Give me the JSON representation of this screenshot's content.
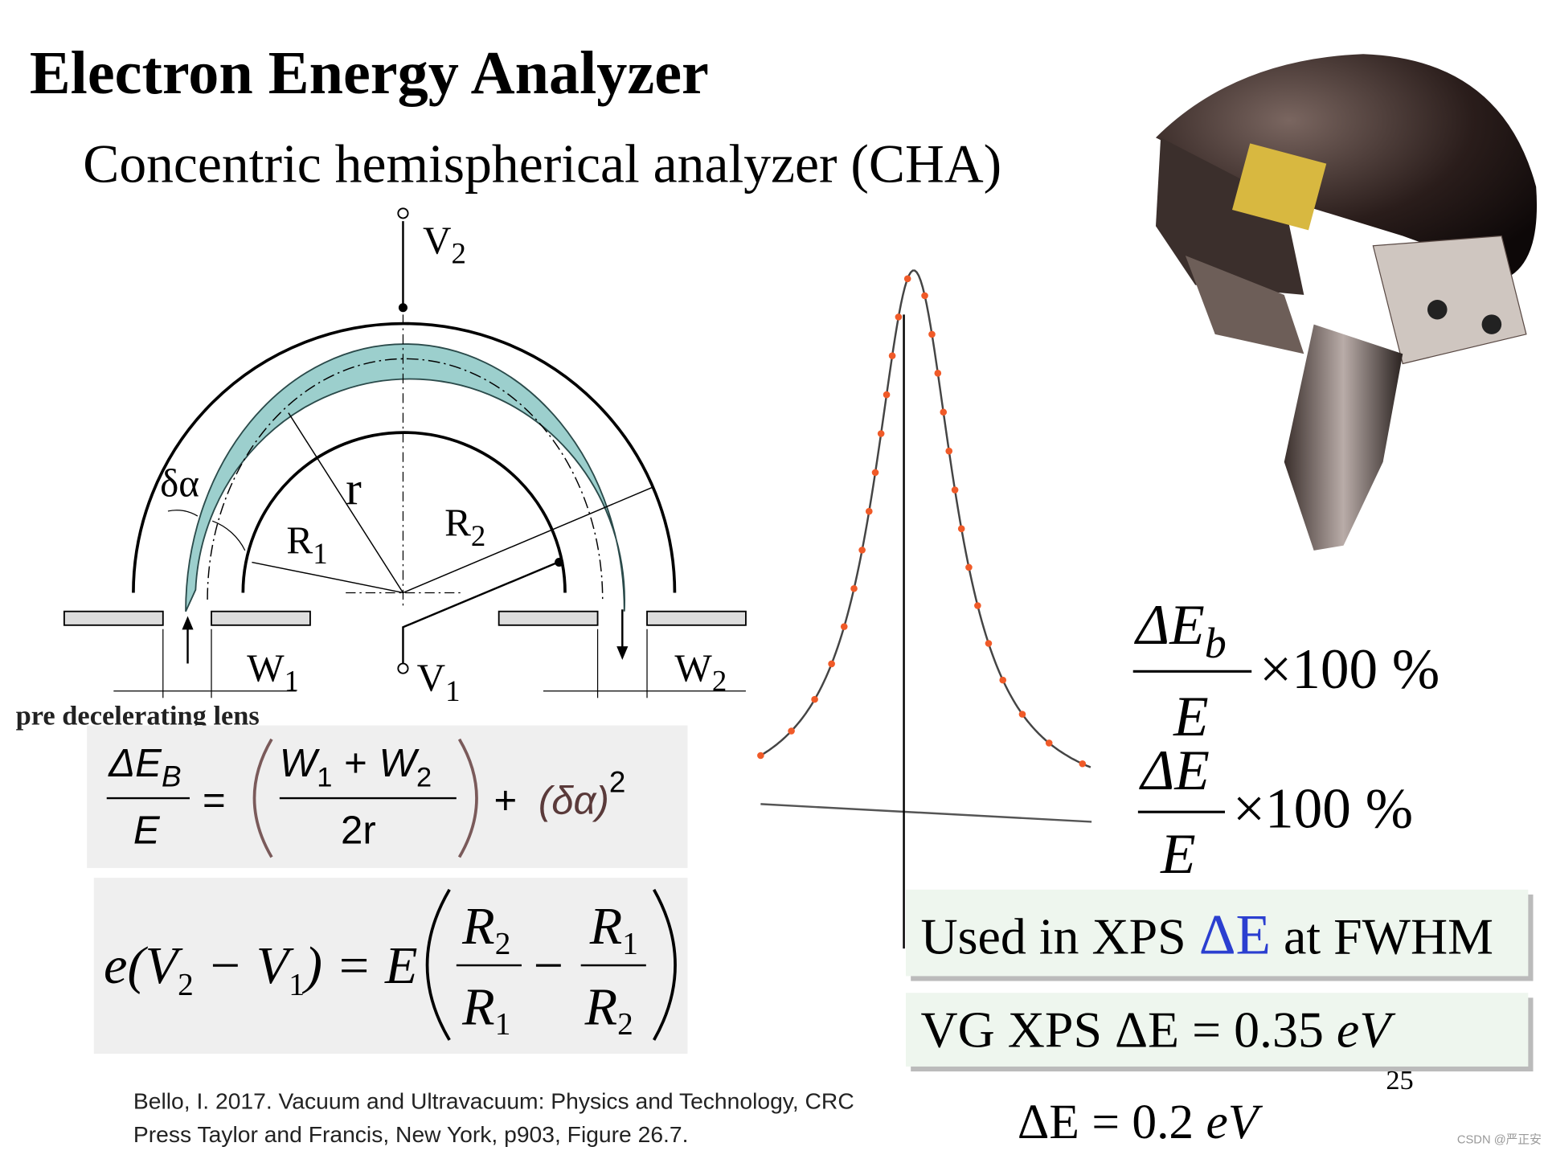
{
  "title": "Electron Energy Analyzer",
  "subtitle": "Concentric hemispherical analyzer (CHA)",
  "diagram_labels": [
    {
      "text": "V",
      "sub": "2"
    },
    {
      "text": "V",
      "sub": "1"
    },
    {
      "text": "δα"
    },
    {
      "text": "r"
    },
    {
      "text": "R",
      "sub": "1"
    },
    {
      "text": "R",
      "sub": "2"
    },
    {
      "text": "W",
      "sub": "1"
    },
    {
      "text": "W",
      "sub": "2"
    }
  ],
  "lens_label": "pre decelerating lens",
  "equation_1": {
    "lhs_num": "ΔE",
    "lhs_num_sub": "B",
    "lhs_den": "E",
    "equals": "=",
    "w1": "W",
    "w1_sub": "1",
    "plus": "+",
    "w2": "W",
    "w2_sub": "2",
    "rhs_den": "2r",
    "plus_2": "+",
    "delta_alpha": "(δα)",
    "power": "2"
  },
  "equation_2": {
    "lhs": "e(V",
    "v2_sub": "2",
    "minus": " − V",
    "v1_sub": "1",
    "mid": ") = E",
    "f1_num": "R",
    "f1_num_sub": "2",
    "f1_den": "R",
    "f1_den_sub": "1",
    "minus_2": "−",
    "f2_num": "R",
    "f2_num_sub": "1",
    "f2_den": "R",
    "f2_den_sub": "2"
  },
  "resolution_1": {
    "num": "ΔE",
    "num_sub": "b",
    "den": "E",
    "factor": "×100 %"
  },
  "resolution_2": {
    "num": "ΔE",
    "den": "E",
    "factor": "×100 %"
  },
  "box_1": {
    "text_a": "Used in XPS ",
    "highlight": "ΔE",
    "text_b": " at FWHM"
  },
  "box_2": {
    "text_a": "VG XPS ΔE = 0.35 ",
    "unit": "eV"
  },
  "page_number": "25",
  "other_resolution": {
    "text_a": "ΔE = 0.2 ",
    "unit": "eV"
  },
  "citation": [
    "Bello, I. 2017. Vacuum and Ultravacuum: Physics and Technology, CRC",
    "Press Taylor and Francis, New York, p903, Figure 26.7."
  ],
  "watermark": "CSDN @严正安"
}
